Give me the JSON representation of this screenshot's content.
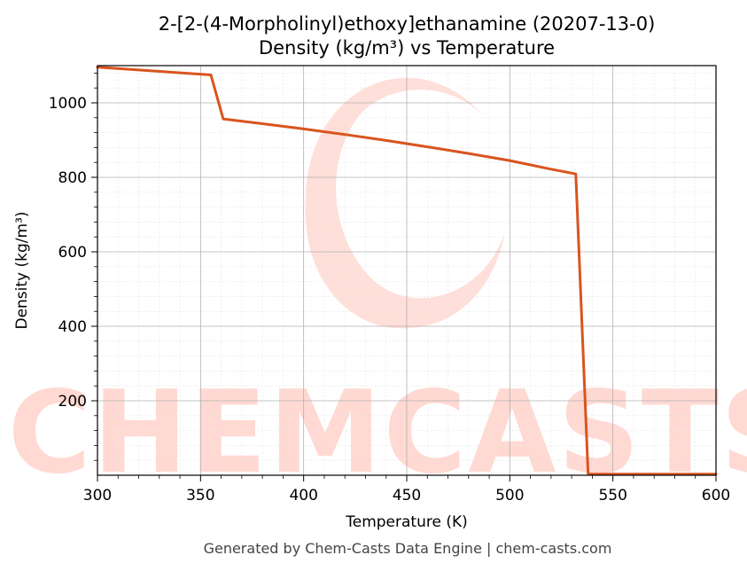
{
  "chart_data": {
    "type": "line",
    "title": "2-[2-(4-Morpholinyl)ethoxy]ethanamine (20207-13-0)",
    "subtitle": "Density (kg/m³) vs Temperature",
    "xlabel": "Temperature (K)",
    "ylabel": "Density (kg/m³)",
    "xlim": [
      300,
      600
    ],
    "ylim": [
      0,
      1100
    ],
    "x_ticks": [
      300,
      350,
      400,
      450,
      500,
      550,
      600
    ],
    "y_ticks": [
      200,
      400,
      600,
      800,
      1000
    ],
    "grid": true,
    "series": [
      {
        "color": "#d9541e",
        "x": [
          300,
          355,
          361,
          380,
          400,
          420,
          440,
          460,
          480,
          500,
          520,
          532,
          538,
          540,
          600
        ],
        "y": [
          1096,
          1075,
          957,
          944,
          930,
          915,
          899,
          882,
          864,
          845,
          822,
          809,
          3,
          3,
          3
        ]
      }
    ]
  },
  "footer": "Generated by Chem-Casts Data Engine | chem-casts.com",
  "watermark": {
    "text": "CHEMCASTS",
    "color": "#ffd9d2"
  }
}
